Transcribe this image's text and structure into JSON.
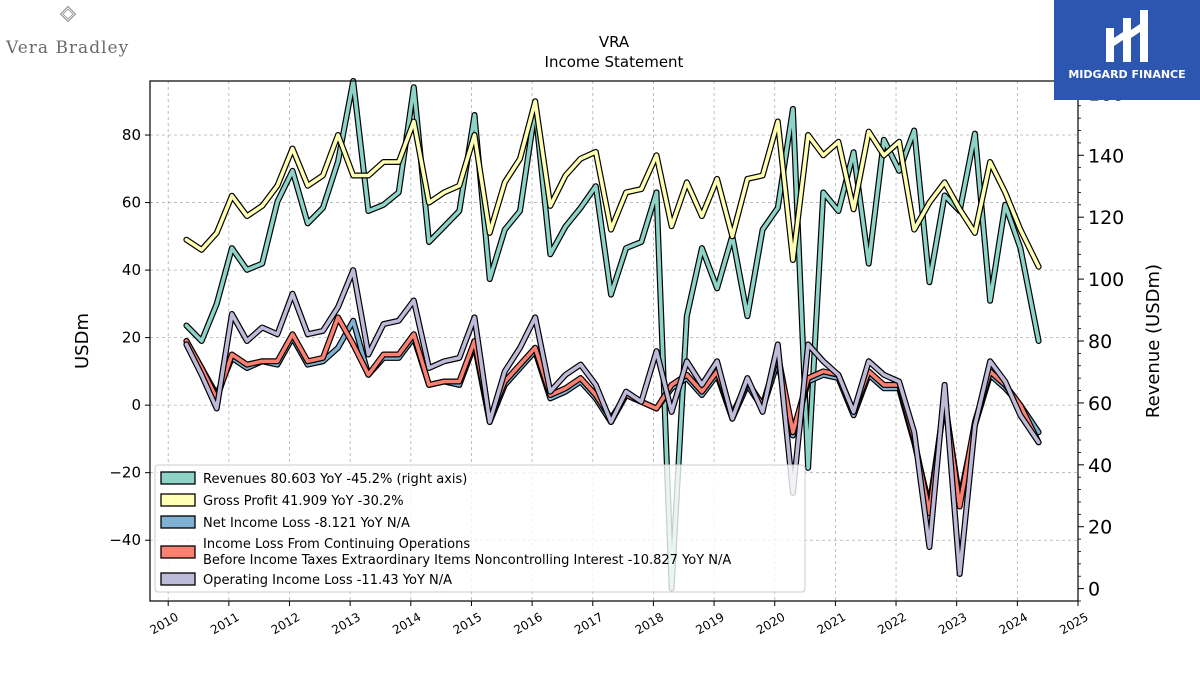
{
  "branding": {
    "left_wordmark": "Vera Bradley",
    "left_icon": "vera-bradley-logo-icon",
    "right_wordmark": "MIDGARD FINANCE",
    "right_icon": "midgard-finance-logo-icon",
    "right_bg": "#2d56b0"
  },
  "chart_data": {
    "type": "line",
    "title": "VRA",
    "subtitle": "Income Statement",
    "ylabel": "USDm",
    "y2label": "Revenue (USDm)",
    "xlim": [
      2009.7,
      2025.0
    ],
    "ylim": [
      -58,
      96
    ],
    "y2lim": [
      -4,
      164
    ],
    "x_ticks": [
      2010,
      2011,
      2012,
      2013,
      2014,
      2015,
      2016,
      2017,
      2018,
      2019,
      2020,
      2021,
      2022,
      2023,
      2024,
      2025
    ],
    "y_ticks": [
      -40,
      -20,
      0,
      20,
      40,
      60,
      80
    ],
    "y2_ticks": [
      0,
      20,
      40,
      60,
      80,
      100,
      120,
      140,
      160
    ],
    "grid": true,
    "legend_position": "bottom-left",
    "x": [
      2010.3,
      2010.55,
      2010.8,
      2011.05,
      2011.3,
      2011.55,
      2011.8,
      2012.05,
      2012.3,
      2012.55,
      2012.8,
      2013.05,
      2013.3,
      2013.55,
      2013.8,
      2014.05,
      2014.3,
      2014.55,
      2014.8,
      2015.05,
      2015.3,
      2015.55,
      2015.8,
      2016.05,
      2016.3,
      2016.55,
      2016.8,
      2017.05,
      2017.3,
      2017.55,
      2017.8,
      2018.05,
      2018.3,
      2018.55,
      2018.8,
      2019.05,
      2019.3,
      2019.55,
      2019.8,
      2020.05,
      2020.3,
      2020.55,
      2020.8,
      2021.05,
      2021.3,
      2021.55,
      2021.8,
      2022.05,
      2022.3,
      2022.55,
      2022.8,
      2023.05,
      2023.3,
      2023.55,
      2023.8,
      2024.05,
      2024.35
    ],
    "series": [
      {
        "name": "Revenues  80.603 YoY -45.2% (right axis)",
        "axis": "right",
        "color": "#8dd3c7",
        "values": [
          85,
          80,
          92,
          110,
          103,
          105,
          125,
          135,
          118,
          123,
          138,
          164,
          122,
          124,
          128,
          162,
          112,
          117,
          122,
          153,
          100,
          116,
          122,
          155,
          108,
          117,
          123,
          130,
          95,
          110,
          112,
          128,
          0,
          88,
          110,
          97,
          114,
          88,
          116,
          123,
          155,
          39,
          128,
          122,
          141,
          105,
          145,
          135,
          148,
          99,
          127,
          122,
          147,
          93,
          124,
          110,
          80
        ]
      },
      {
        "name": "Gross Profit  41.909 YoY -30.2%",
        "axis": "left",
        "color": "#ffffb3",
        "values": [
          49,
          46,
          51,
          62,
          56,
          59,
          65,
          76,
          65,
          68,
          80,
          68,
          68,
          72,
          72,
          84,
          60,
          63,
          65,
          80,
          51,
          66,
          73,
          90,
          59,
          68,
          73,
          75,
          52,
          63,
          64,
          74,
          53,
          66,
          56,
          67,
          50,
          67,
          68,
          84,
          43,
          80,
          74,
          78,
          58,
          81,
          74,
          78,
          52,
          60,
          66,
          58,
          51,
          72,
          63,
          52,
          41
        ]
      },
      {
        "name": "Net Income Loss  -8.121 YoY N/A",
        "axis": "left",
        "color": "#80b1d3",
        "values": [
          19,
          11,
          3,
          14,
          11,
          13,
          12,
          20,
          12,
          13,
          17,
          25,
          9,
          14,
          14,
          20,
          6,
          7,
          6,
          18,
          -5,
          6,
          11,
          16,
          2,
          4,
          7,
          2,
          -5,
          3,
          1,
          -1,
          5,
          8,
          3,
          9,
          -4,
          6,
          -1,
          13,
          -9,
          7,
          9,
          8,
          -3,
          9,
          5,
          5,
          -11,
          -30,
          1,
          -28,
          -6,
          9,
          5,
          0,
          -8
        ]
      },
      {
        "name": "Income Loss From Continuing Operations\nBefore Income Taxes Extraordinary Items Noncontrolling Interest  -10.827 YoY N/A",
        "axis": "left",
        "color": "#fb8072",
        "values": [
          19,
          11,
          2,
          15,
          12,
          13,
          13,
          21,
          13,
          14,
          26,
          18,
          9,
          15,
          15,
          21,
          6,
          7,
          7,
          19,
          -4,
          7,
          12,
          17,
          3,
          5,
          8,
          3,
          -4,
          3,
          1,
          -1,
          6,
          9,
          4,
          10,
          -3,
          7,
          0,
          15,
          -8,
          8,
          10,
          9,
          -2,
          10,
          6,
          6,
          -10,
          -32,
          2,
          -30,
          -5,
          10,
          6,
          0,
          -11
        ]
      },
      {
        "name": "Operating Income Loss  -11.43 YoY N/A",
        "axis": "left",
        "color": "#bebada",
        "values": [
          18,
          9,
          -1,
          27,
          19,
          23,
          21,
          33,
          21,
          22,
          29,
          40,
          15,
          24,
          25,
          31,
          11,
          13,
          14,
          26,
          -5,
          10,
          17,
          26,
          4,
          9,
          12,
          6,
          -5,
          4,
          1,
          16,
          -2,
          13,
          6,
          13,
          -4,
          8,
          -2,
          18,
          -26,
          18,
          13,
          9,
          -2,
          13,
          9,
          7,
          -8,
          -42,
          6,
          -50,
          -6,
          13,
          7,
          -3,
          -11
        ]
      }
    ]
  }
}
